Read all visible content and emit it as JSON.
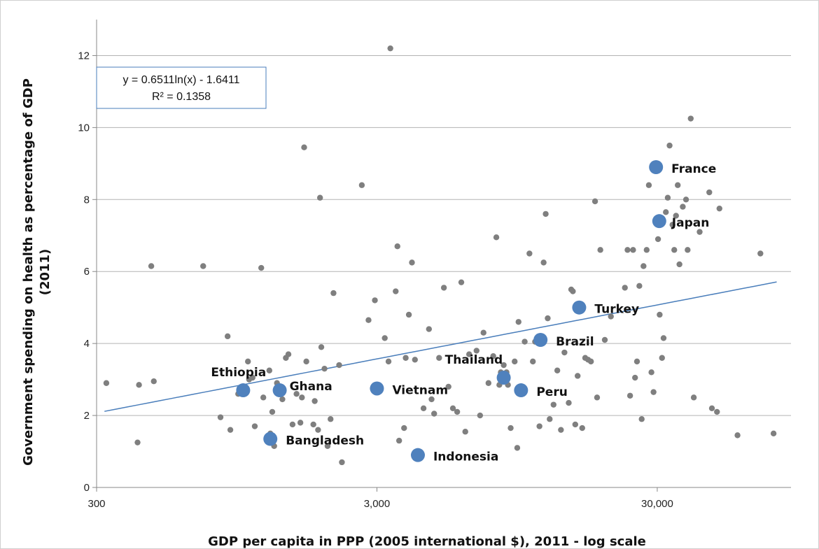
{
  "chart_data": {
    "type": "scatter",
    "title": "",
    "xlabel": "GDP per capita in PPP (2005 international $), 2011 - log scale",
    "ylabel": "Government spending on health as percentage of GDP (2011)",
    "ylabel_lines": [
      "Government spending on health as percentage of GDP",
      "(2011)"
    ],
    "x_scale": "log",
    "xlim": [
      300,
      90000
    ],
    "ylim": [
      0,
      13
    ],
    "x_ticks": [
      300,
      3000,
      30000
    ],
    "x_tick_labels": [
      "300",
      "3,000",
      "30,000"
    ],
    "y_ticks": [
      0,
      2,
      4,
      6,
      8,
      10,
      12
    ],
    "y_tick_labels": [
      "0",
      "2",
      "4",
      "6",
      "8",
      "10",
      "12"
    ],
    "grid": "horizontal",
    "trendline": {
      "type": "logarithmic",
      "slope": 0.6511,
      "intercept": -1.6411,
      "x_range": [
        320,
        80000
      ],
      "equation_lines": [
        "y = 0.6511ln(x) - 1.6411",
        "R² = 0.1358"
      ],
      "color": "#4a7ebb"
    },
    "highlight_color": "#4f81bd",
    "point_color": "#7f7f7f",
    "highlighted": [
      {
        "name": "Ethiopia",
        "x": 1000,
        "y": 2.7
      },
      {
        "name": "Ghana",
        "x": 1350,
        "y": 2.7
      },
      {
        "name": "Vietnam",
        "x": 3000,
        "y": 2.75
      },
      {
        "name": "Bangladesh",
        "x": 1250,
        "y": 1.35
      },
      {
        "name": "Indonesia",
        "x": 4200,
        "y": 0.9
      },
      {
        "name": "Thailand",
        "x": 8500,
        "y": 3.05
      },
      {
        "name": "Peru",
        "x": 9800,
        "y": 2.7
      },
      {
        "name": "Brazil",
        "x": 11500,
        "y": 4.1
      },
      {
        "name": "Turkey",
        "x": 15800,
        "y": 5.0
      },
      {
        "name": "France",
        "x": 29700,
        "y": 8.9
      },
      {
        "name": "Japan",
        "x": 30500,
        "y": 7.4
      }
    ],
    "points": [
      [
        325,
        2.9
      ],
      [
        420,
        1.25
      ],
      [
        425,
        2.85
      ],
      [
        480,
        2.95
      ],
      [
        470,
        6.15
      ],
      [
        720,
        6.15
      ],
      [
        830,
        1.95
      ],
      [
        880,
        4.2
      ],
      [
        900,
        1.6
      ],
      [
        960,
        2.6
      ],
      [
        970,
        2.75
      ],
      [
        1040,
        3.5
      ],
      [
        1050,
        3.0
      ],
      [
        1080,
        3.05
      ],
      [
        1100,
        1.7
      ],
      [
        1160,
        6.1
      ],
      [
        1180,
        2.5
      ],
      [
        1240,
        3.25
      ],
      [
        1250,
        1.5
      ],
      [
        1270,
        2.1
      ],
      [
        1290,
        1.15
      ],
      [
        1320,
        2.9
      ],
      [
        1380,
        2.45
      ],
      [
        1420,
        3.6
      ],
      [
        1450,
        3.7
      ],
      [
        1500,
        1.75
      ],
      [
        1550,
        2.6
      ],
      [
        1600,
        1.8
      ],
      [
        1620,
        2.5
      ],
      [
        1650,
        9.45
      ],
      [
        1680,
        3.5
      ],
      [
        1780,
        1.75
      ],
      [
        1800,
        2.4
      ],
      [
        1850,
        1.6
      ],
      [
        1880,
        8.05
      ],
      [
        1900,
        3.9
      ],
      [
        1950,
        3.3
      ],
      [
        2000,
        1.15
      ],
      [
        2050,
        1.9
      ],
      [
        2100,
        5.4
      ],
      [
        2200,
        3.4
      ],
      [
        2250,
        0.7
      ],
      [
        2650,
        8.4
      ],
      [
        2800,
        4.65
      ],
      [
        2900,
        2.75
      ],
      [
        2950,
        5.2
      ],
      [
        3000,
        2.7
      ],
      [
        3200,
        4.15
      ],
      [
        3300,
        3.5
      ],
      [
        3350,
        12.2
      ],
      [
        3500,
        5.45
      ],
      [
        3550,
        6.7
      ],
      [
        3600,
        1.3
      ],
      [
        3750,
        1.65
      ],
      [
        3800,
        3.6
      ],
      [
        3900,
        4.8
      ],
      [
        4000,
        6.25
      ],
      [
        4100,
        3.55
      ],
      [
        4400,
        2.2
      ],
      [
        4600,
        4.4
      ],
      [
        4700,
        2.45
      ],
      [
        4800,
        2.05
      ],
      [
        5000,
        3.6
      ],
      [
        5200,
        5.55
      ],
      [
        5400,
        2.8
      ],
      [
        5600,
        2.2
      ],
      [
        5800,
        2.1
      ],
      [
        6000,
        5.7
      ],
      [
        6200,
        1.55
      ],
      [
        6400,
        3.7
      ],
      [
        6800,
        3.8
      ],
      [
        7000,
        2.0
      ],
      [
        7200,
        4.3
      ],
      [
        7500,
        2.9
      ],
      [
        7800,
        3.65
      ],
      [
        8000,
        6.95
      ],
      [
        8200,
        2.85
      ],
      [
        8300,
        3.2
      ],
      [
        8500,
        3.4
      ],
      [
        8700,
        3.2
      ],
      [
        8800,
        2.85
      ],
      [
        9000,
        1.65
      ],
      [
        9300,
        3.5
      ],
      [
        9500,
        1.1
      ],
      [
        9600,
        4.6
      ],
      [
        9700,
        2.6
      ],
      [
        10100,
        4.05
      ],
      [
        10500,
        6.5
      ],
      [
        10800,
        3.5
      ],
      [
        11000,
        4.05
      ],
      [
        11400,
        1.7
      ],
      [
        11800,
        6.25
      ],
      [
        12000,
        7.6
      ],
      [
        12200,
        4.7
      ],
      [
        12400,
        1.9
      ],
      [
        12800,
        2.3
      ],
      [
        13200,
        3.25
      ],
      [
        13600,
        1.6
      ],
      [
        14000,
        3.75
      ],
      [
        14500,
        2.35
      ],
      [
        14800,
        5.5
      ],
      [
        15000,
        5.45
      ],
      [
        15300,
        1.75
      ],
      [
        15600,
        3.1
      ],
      [
        16200,
        1.65
      ],
      [
        16600,
        3.6
      ],
      [
        17000,
        3.55
      ],
      [
        17400,
        3.5
      ],
      [
        18000,
        7.95
      ],
      [
        18300,
        2.5
      ],
      [
        18800,
        6.6
      ],
      [
        19500,
        4.1
      ],
      [
        20500,
        4.75
      ],
      [
        23000,
        5.55
      ],
      [
        23500,
        6.6
      ],
      [
        24000,
        2.55
      ],
      [
        24600,
        6.6
      ],
      [
        25000,
        3.05
      ],
      [
        25400,
        3.5
      ],
      [
        25900,
        5.6
      ],
      [
        26400,
        1.9
      ],
      [
        26800,
        6.15
      ],
      [
        27500,
        6.6
      ],
      [
        28000,
        8.4
      ],
      [
        28600,
        3.2
      ],
      [
        29100,
        2.65
      ],
      [
        29700,
        7.35
      ],
      [
        30200,
        6.9
      ],
      [
        30600,
        4.8
      ],
      [
        31200,
        3.6
      ],
      [
        31600,
        4.15
      ],
      [
        32200,
        7.65
      ],
      [
        32700,
        8.05
      ],
      [
        33200,
        9.5
      ],
      [
        34000,
        7.3
      ],
      [
        34500,
        6.6
      ],
      [
        35000,
        7.55
      ],
      [
        35500,
        8.4
      ],
      [
        36000,
        6.2
      ],
      [
        37000,
        7.8
      ],
      [
        38000,
        8.0
      ],
      [
        38500,
        6.6
      ],
      [
        39500,
        10.25
      ],
      [
        40500,
        2.5
      ],
      [
        42500,
        7.1
      ],
      [
        46000,
        8.2
      ],
      [
        47000,
        2.2
      ],
      [
        49000,
        2.1
      ],
      [
        50000,
        7.75
      ],
      [
        58000,
        1.45
      ],
      [
        70000,
        6.5
      ],
      [
        78000,
        1.5
      ]
    ]
  }
}
